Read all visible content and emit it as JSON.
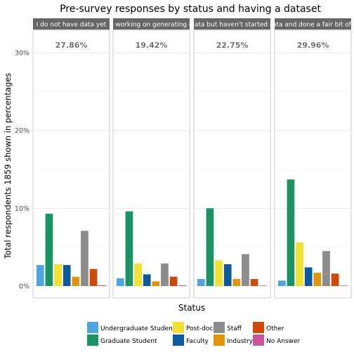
{
  "chart_data": {
    "type": "bar",
    "title": "Pre-survey responses by status and having a dataset",
    "xlabel": "Status",
    "ylabel": "Total respondents 1859 shown in percentages",
    "ylim": [
      0,
      33
    ],
    "yticks": [
      0,
      10,
      20,
      30
    ],
    "ytick_labels": [
      "0%",
      "10%",
      "20%",
      "30%"
    ],
    "grid": true,
    "legend_position": "bottom",
    "categories": [
      "Undergraduate Student",
      "Graduate Student",
      "Post-doc",
      "Faculty",
      "Industry",
      "Staff",
      "Other",
      "No Answer"
    ],
    "legend_order": [
      "Undergraduate Student",
      "Graduate Student",
      "Post-doc",
      "Faculty",
      "Staff",
      "Industry",
      "Other",
      "No Answer"
    ],
    "colors": {
      "Undergraduate Student": "#4da6df",
      "Graduate Student": "#1b9365",
      "Post-doc": "#f0e130",
      "Faculty": "#0b5a9e",
      "Industry": "#e1930a",
      "Staff": "#8c8c8c",
      "Other": "#cd4a0a",
      "No Answer": "#c8569a"
    },
    "panels": [
      {
        "label": "I do not have data yet",
        "total_label": "27.86%",
        "values": [
          2.7,
          9.3,
          2.8,
          2.7,
          1.2,
          7.1,
          2.2,
          0.1
        ]
      },
      {
        "label": "I am working on generating data",
        "total_label": "19.42%",
        "values": [
          1.0,
          9.6,
          2.9,
          1.5,
          0.6,
          2.9,
          1.2,
          0.1
        ]
      },
      {
        "label": "I have data but haven't started analysis",
        "total_label": "22.75%",
        "values": [
          0.9,
          10.0,
          3.3,
          2.8,
          0.9,
          4.1,
          0.9,
          0.0
        ]
      },
      {
        "label": "I have data and done a fair bit of analysis",
        "total_label": "29.96%",
        "values": [
          0.7,
          13.7,
          5.6,
          2.4,
          1.7,
          4.5,
          1.6,
          0.0
        ]
      }
    ]
  }
}
